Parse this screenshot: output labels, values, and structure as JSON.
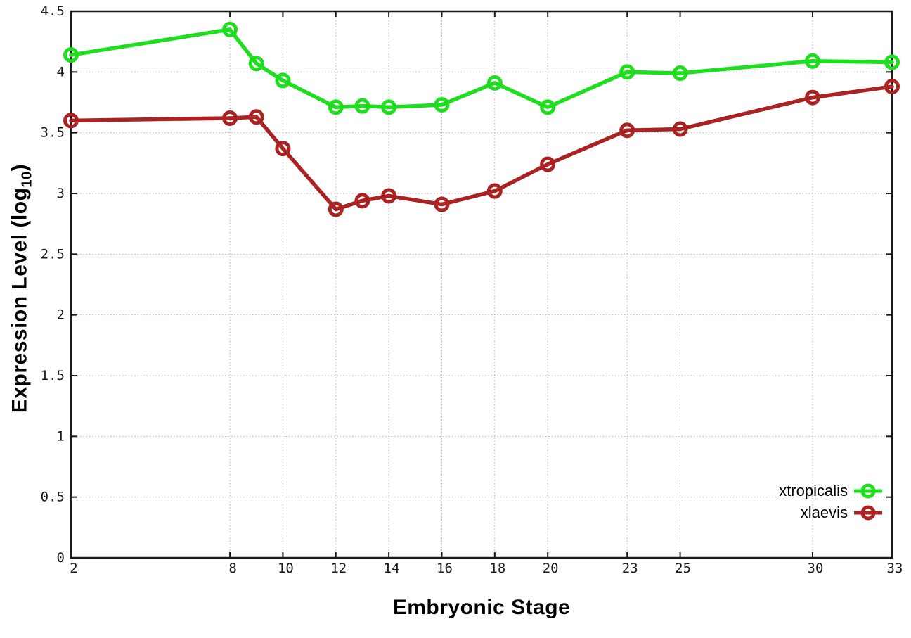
{
  "chart_data": {
    "type": "line",
    "title": "",
    "xlabel": "Embryonic Stage",
    "ylabel": "Expression Level (log10)",
    "ylabel_parts": {
      "prefix": "Expression Level (log",
      "sub": "10",
      "suffix": ")"
    },
    "x": [
      2,
      8,
      9,
      10,
      12,
      13,
      14,
      16,
      18,
      20,
      23,
      25,
      30,
      33
    ],
    "series": [
      {
        "name": "xtropicalis",
        "color": "#1fdd1f",
        "values": [
          4.14,
          4.35,
          4.07,
          3.93,
          3.71,
          3.72,
          3.71,
          3.73,
          3.91,
          3.71,
          4.0,
          3.99,
          4.09,
          4.08
        ]
      },
      {
        "name": "xlaevis",
        "color": "#aa2222",
        "values": [
          3.6,
          3.62,
          3.63,
          3.37,
          2.87,
          2.94,
          2.98,
          2.91,
          3.02,
          3.24,
          3.52,
          3.53,
          3.79,
          3.88
        ]
      }
    ],
    "x_ticks": [
      {
        "value": 2,
        "label": "2"
      },
      {
        "value": 8,
        "label": "8"
      },
      {
        "value": 10,
        "label": "10"
      },
      {
        "value": 12,
        "label": "12"
      },
      {
        "value": 14,
        "label": "14"
      },
      {
        "value": 16,
        "label": "16"
      },
      {
        "value": 18,
        "label": "18"
      },
      {
        "value": 20,
        "label": "20"
      },
      {
        "value": 23,
        "label": "23"
      },
      {
        "value": 25,
        "label": "25"
      },
      {
        "value": 30,
        "label": "30"
      },
      {
        "value": 33,
        "label": "33"
      }
    ],
    "y_ticks": [
      {
        "value": 0,
        "label": "0"
      },
      {
        "value": 0.5,
        "label": "0.5"
      },
      {
        "value": 1,
        "label": "1"
      },
      {
        "value": 1.5,
        "label": "1.5"
      },
      {
        "value": 2,
        "label": "2"
      },
      {
        "value": 2.5,
        "label": "2.5"
      },
      {
        "value": 3,
        "label": "3"
      },
      {
        "value": 3.5,
        "label": "3.5"
      },
      {
        "value": 4,
        "label": "4"
      },
      {
        "value": 4.5,
        "label": "4.5"
      }
    ],
    "xlim": [
      2,
      33
    ],
    "ylim": [
      0,
      4.5
    ],
    "grid": true,
    "legend_position": "inside-bottom-right",
    "marker": "open-circle"
  },
  "colors": {
    "background": "#ffffff",
    "axis": "#1a1a1a",
    "grid": "#b0b0b0",
    "tick_text": "#1a1a1a",
    "title_text": "#000000"
  }
}
